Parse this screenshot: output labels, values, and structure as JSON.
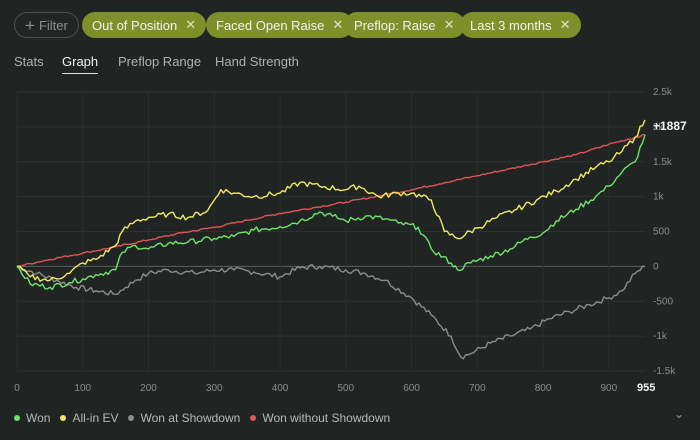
{
  "filters": {
    "add_label": "Filter",
    "chips": [
      {
        "label": "Out of Position"
      },
      {
        "label": "Faced Open Raise"
      },
      {
        "label": "Preflop: Raise"
      },
      {
        "label": "Last 3 months"
      }
    ],
    "chip_color": "#7f8f2a"
  },
  "tabs": [
    {
      "label": "Stats",
      "selected": false
    },
    {
      "label": "Graph",
      "selected": true
    },
    {
      "label": "Preflop Range",
      "selected": false
    },
    {
      "label": "Hand Strength",
      "selected": false
    }
  ],
  "chart_data": {
    "type": "line",
    "title": "",
    "xlabel": "",
    "ylabel": "",
    "xlim": [
      0,
      955
    ],
    "ylim": [
      -1500,
      2500
    ],
    "x_ticks": [
      "0",
      "100",
      "200",
      "300",
      "400",
      "500",
      "600",
      "700",
      "800",
      "900"
    ],
    "x_end_label": "955",
    "y_ticks": [
      "2.5k",
      "2k",
      "1.5k",
      "1k",
      "500",
      "0",
      "-500",
      "-1k",
      "-1.5k"
    ],
    "end_value_label": "+1887",
    "grid": true,
    "legend_position": "bottom-left",
    "series": [
      {
        "name": "Won",
        "color": "#6fe36a",
        "points": [
          [
            0,
            0
          ],
          [
            20,
            -250
          ],
          [
            50,
            -300
          ],
          [
            80,
            -230
          ],
          [
            100,
            -180
          ],
          [
            120,
            -120
          ],
          [
            150,
            -50
          ],
          [
            160,
            200
          ],
          [
            180,
            300
          ],
          [
            200,
            250
          ],
          [
            230,
            330
          ],
          [
            260,
            350
          ],
          [
            300,
            400
          ],
          [
            330,
            430
          ],
          [
            360,
            520
          ],
          [
            400,
            570
          ],
          [
            430,
            650
          ],
          [
            460,
            780
          ],
          [
            480,
            720
          ],
          [
            500,
            650
          ],
          [
            530,
            720
          ],
          [
            560,
            680
          ],
          [
            580,
            620
          ],
          [
            610,
            560
          ],
          [
            630,
            250
          ],
          [
            660,
            50
          ],
          [
            670,
            -50
          ],
          [
            690,
            50
          ],
          [
            720,
            150
          ],
          [
            750,
            250
          ],
          [
            780,
            420
          ],
          [
            800,
            480
          ],
          [
            820,
            650
          ],
          [
            850,
            820
          ],
          [
            880,
            1000
          ],
          [
            900,
            1150
          ],
          [
            920,
            1350
          ],
          [
            940,
            1500
          ],
          [
            955,
            1887
          ]
        ]
      },
      {
        "name": "All-in EV",
        "color": "#f1e864",
        "points": [
          [
            0,
            0
          ],
          [
            20,
            -150
          ],
          [
            50,
            -200
          ],
          [
            80,
            -100
          ],
          [
            100,
            50
          ],
          [
            120,
            100
          ],
          [
            150,
            300
          ],
          [
            160,
            500
          ],
          [
            180,
            650
          ],
          [
            200,
            700
          ],
          [
            230,
            750
          ],
          [
            260,
            700
          ],
          [
            290,
            800
          ],
          [
            310,
            1100
          ],
          [
            330,
            1050
          ],
          [
            360,
            1000
          ],
          [
            400,
            1050
          ],
          [
            430,
            1200
          ],
          [
            460,
            1150
          ],
          [
            500,
            1100
          ],
          [
            520,
            1150
          ],
          [
            550,
            1000
          ],
          [
            580,
            1050
          ],
          [
            600,
            1050
          ],
          [
            630,
            950
          ],
          [
            650,
            500
          ],
          [
            670,
            400
          ],
          [
            700,
            550
          ],
          [
            730,
            700
          ],
          [
            760,
            820
          ],
          [
            790,
            950
          ],
          [
            820,
            1080
          ],
          [
            850,
            1250
          ],
          [
            880,
            1420
          ],
          [
            900,
            1500
          ],
          [
            920,
            1650
          ],
          [
            940,
            1850
          ],
          [
            955,
            2100
          ]
        ]
      },
      {
        "name": "Won at Showdown",
        "color": "#8b8f8c",
        "points": [
          [
            0,
            0
          ],
          [
            30,
            -100
          ],
          [
            60,
            -200
          ],
          [
            90,
            -300
          ],
          [
            120,
            -350
          ],
          [
            150,
            -400
          ],
          [
            165,
            -300
          ],
          [
            180,
            -200
          ],
          [
            200,
            -100
          ],
          [
            230,
            -50
          ],
          [
            270,
            -100
          ],
          [
            300,
            -50
          ],
          [
            330,
            -50
          ],
          [
            360,
            -80
          ],
          [
            400,
            -150
          ],
          [
            430,
            -20
          ],
          [
            460,
            0
          ],
          [
            500,
            -50
          ],
          [
            530,
            -100
          ],
          [
            560,
            -200
          ],
          [
            600,
            -450
          ],
          [
            630,
            -700
          ],
          [
            660,
            -1000
          ],
          [
            675,
            -1300
          ],
          [
            690,
            -1250
          ],
          [
            720,
            -1100
          ],
          [
            750,
            -1000
          ],
          [
            780,
            -900
          ],
          [
            810,
            -750
          ],
          [
            840,
            -650
          ],
          [
            870,
            -550
          ],
          [
            900,
            -450
          ],
          [
            920,
            -350
          ],
          [
            940,
            -100
          ],
          [
            955,
            0
          ]
        ]
      },
      {
        "name": "Won without Showdown",
        "color": "#e05555",
        "points": [
          [
            0,
            0
          ],
          [
            50,
            100
          ],
          [
            100,
            190
          ],
          [
            150,
            280
          ],
          [
            200,
            380
          ],
          [
            250,
            480
          ],
          [
            300,
            560
          ],
          [
            350,
            660
          ],
          [
            400,
            760
          ],
          [
            450,
            840
          ],
          [
            500,
            920
          ],
          [
            550,
            1010
          ],
          [
            600,
            1100
          ],
          [
            650,
            1200
          ],
          [
            700,
            1300
          ],
          [
            750,
            1400
          ],
          [
            800,
            1500
          ],
          [
            850,
            1600
          ],
          [
            900,
            1750
          ],
          [
            955,
            1887
          ]
        ]
      }
    ]
  }
}
